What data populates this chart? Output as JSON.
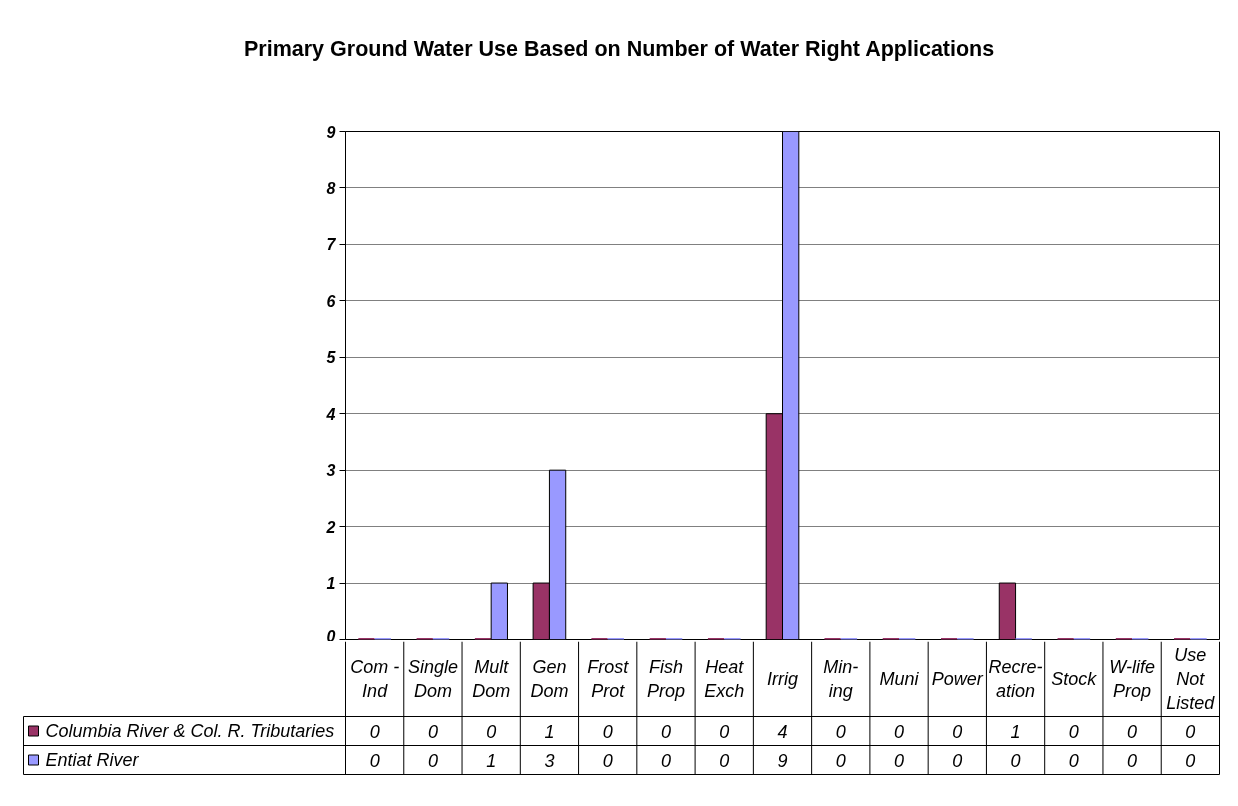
{
  "chart_data": {
    "type": "bar",
    "title": "Primary Ground Water Use Based on Number of Water Right Applications",
    "categories": [
      "Com -\nInd",
      "Single\nDom",
      "Mult\nDom",
      "Gen\nDom",
      "Frost\nProt",
      "Fish\nProp",
      "Heat\nExch",
      "Irrig",
      "Min-\ning",
      "Muni",
      "Power",
      "Recre-\nation",
      "Stock",
      "W-life\nProp",
      "Use\nNot\nListed"
    ],
    "series": [
      {
        "name": "Columbia River & Col. R. Tributaries",
        "color": "#993366",
        "values": [
          0,
          0,
          0,
          1,
          0,
          0,
          0,
          4,
          0,
          0,
          0,
          1,
          0,
          0,
          0
        ]
      },
      {
        "name": "Entiat River",
        "color": "#9999ff",
        "values": [
          0,
          0,
          1,
          3,
          0,
          0,
          0,
          9,
          0,
          0,
          0,
          0,
          0,
          0,
          0
        ]
      }
    ],
    "ylim": [
      0,
      9
    ],
    "yticks": [
      0,
      1,
      2,
      3,
      4,
      5,
      6,
      7,
      8,
      9
    ],
    "grid": "y",
    "legend": "bottom left",
    "data_labels": true
  }
}
